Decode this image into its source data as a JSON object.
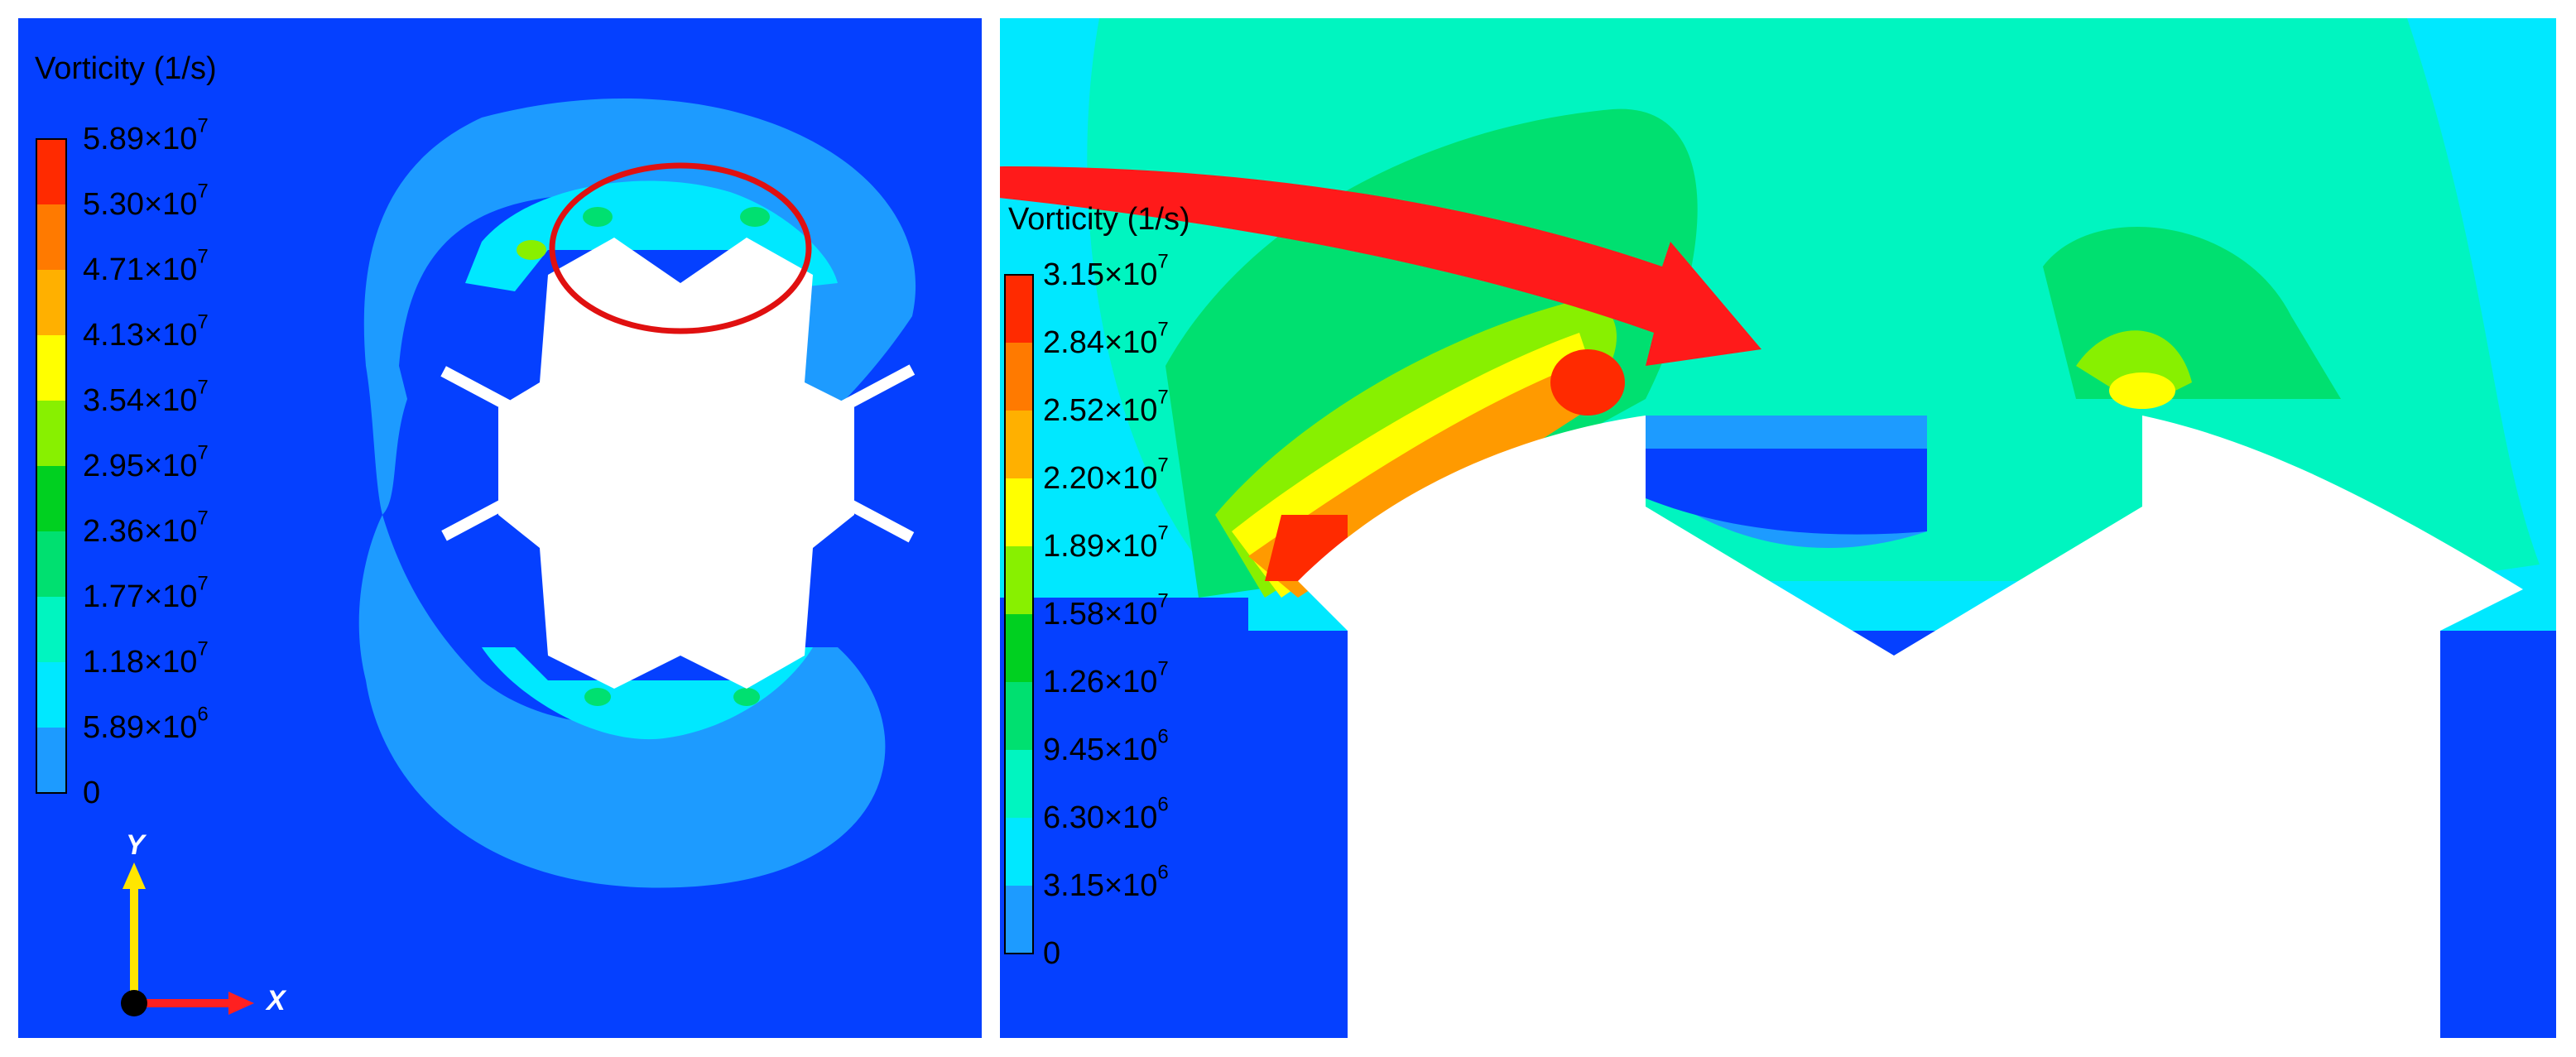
{
  "colors": {
    "background_field": "#0540ff",
    "levels": [
      "#0540ff",
      "#1d9bff",
      "#00e8ff",
      "#00f5c0",
      "#00e070",
      "#00d020",
      "#88f000",
      "#ffff00",
      "#ffb000",
      "#ff7a00",
      "#ff2a00"
    ],
    "highlight": "#e01010",
    "axis_y": "#ffe600",
    "axis_x": "#ff2020"
  },
  "left_panel": {
    "colorbar": {
      "title": "Vorticity (1/s)",
      "ticks": [
        {
          "mant": "5.89×10",
          "exp": "7"
        },
        {
          "mant": "5.30×10",
          "exp": "7"
        },
        {
          "mant": "4.71×10",
          "exp": "7"
        },
        {
          "mant": "4.13×10",
          "exp": "7"
        },
        {
          "mant": "3.54×10",
          "exp": "7"
        },
        {
          "mant": "2.95×10",
          "exp": "7"
        },
        {
          "mant": "2.36×10",
          "exp": "7"
        },
        {
          "mant": "1.77×10",
          "exp": "7"
        },
        {
          "mant": "1.18×10",
          "exp": "7"
        },
        {
          "mant": "5.89×10",
          "exp": "6"
        },
        {
          "mant": "0",
          "exp": ""
        }
      ]
    },
    "axes": {
      "y_label": "Y",
      "x_label": "X"
    }
  },
  "right_panel": {
    "colorbar": {
      "title": "Vorticity (1/s)",
      "ticks": [
        {
          "mant": "3.15×10",
          "exp": "7"
        },
        {
          "mant": "2.84×10",
          "exp": "7"
        },
        {
          "mant": "2.52×10",
          "exp": "7"
        },
        {
          "mant": "2.20×10",
          "exp": "7"
        },
        {
          "mant": "1.89×10",
          "exp": "7"
        },
        {
          "mant": "1.58×10",
          "exp": "7"
        },
        {
          "mant": "1.26×10",
          "exp": "7"
        },
        {
          "mant": "9.45×10",
          "exp": "6"
        },
        {
          "mant": "6.30×10",
          "exp": "6"
        },
        {
          "mant": "3.15×10",
          "exp": "6"
        },
        {
          "mant": "0",
          "exp": ""
        }
      ]
    }
  }
}
